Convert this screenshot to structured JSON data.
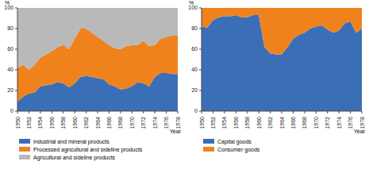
{
  "chart_data": [
    {
      "type": "area",
      "stacked": true,
      "legend": "bottom",
      "x_label": "Year",
      "y_label": "%",
      "x": [
        1950,
        1951,
        1952,
        1953,
        1954,
        1955,
        1956,
        1957,
        1958,
        1959,
        1960,
        1961,
        1962,
        1963,
        1964,
        1965,
        1966,
        1967,
        1968,
        1969,
        1970,
        1971,
        1972,
        1973,
        1974,
        1975,
        1976,
        1977,
        1978
      ],
      "xlim": [
        1950,
        1978
      ],
      "xticks": [
        1950,
        1952,
        1954,
        1956,
        1958,
        1960,
        1962,
        1964,
        1966,
        1968,
        1970,
        1972,
        1974,
        1976,
        1978
      ],
      "ylim": [
        0,
        100
      ],
      "yticks": [
        0,
        20,
        40,
        60,
        80,
        100
      ],
      "series": [
        {
          "name": "Industrial and mineral products",
          "color": "#3a6fb8",
          "values": [
            9,
            14,
            17,
            18,
            24,
            25,
            26,
            28,
            27,
            23,
            27,
            33,
            34,
            33,
            32,
            31,
            26,
            24,
            21,
            22,
            24,
            28,
            27,
            24,
            33,
            37,
            37,
            36,
            36
          ]
        },
        {
          "name": "Processed agricultural and sideline products",
          "color": "#f0821e",
          "values": [
            33,
            31,
            23,
            27,
            28,
            30,
            32,
            34,
            37,
            37,
            43,
            47,
            46,
            43,
            40,
            37,
            38,
            37,
            39,
            41,
            40,
            36,
            41,
            39,
            31,
            33,
            35,
            37,
            37
          ]
        },
        {
          "name": "Agricultural and sideline products",
          "color": "#b9b9b9",
          "values": [
            58,
            55,
            60,
            55,
            48,
            45,
            42,
            38,
            36,
            40,
            30,
            20,
            20,
            24,
            28,
            32,
            36,
            39,
            40,
            37,
            36,
            36,
            32,
            37,
            36,
            30,
            28,
            27,
            27
          ]
        }
      ]
    },
    {
      "type": "area",
      "stacked": true,
      "legend": "bottom",
      "x_label": "Year",
      "y_label": "%",
      "x": [
        1950,
        1951,
        1952,
        1953,
        1954,
        1955,
        1956,
        1957,
        1958,
        1959,
        1960,
        1961,
        1962,
        1963,
        1964,
        1965,
        1966,
        1967,
        1968,
        1969,
        1970,
        1971,
        1972,
        1973,
        1974,
        1975,
        1976,
        1977,
        1978
      ],
      "xlim": [
        1950,
        1978
      ],
      "xticks": [
        1950,
        1952,
        1954,
        1956,
        1958,
        1960,
        1962,
        1964,
        1966,
        1968,
        1970,
        1972,
        1974,
        1976,
        1978
      ],
      "ylim": [
        0,
        100
      ],
      "yticks": [
        0,
        20,
        40,
        60,
        80,
        100
      ],
      "series": [
        {
          "name": "Capital goods",
          "color": "#3a6fb8",
          "values": [
            82,
            81,
            88,
            91,
            92,
            92,
            93,
            91,
            91,
            93,
            93,
            62,
            56,
            55,
            55,
            62,
            70,
            74,
            76,
            80,
            82,
            83,
            79,
            76,
            78,
            85,
            87,
            76,
            80
          ]
        },
        {
          "name": "Consumer goods",
          "color": "#f0821e",
          "values": [
            18,
            19,
            12,
            9,
            8,
            8,
            7,
            9,
            9,
            7,
            7,
            38,
            44,
            45,
            45,
            38,
            30,
            26,
            24,
            20,
            18,
            17,
            21,
            24,
            22,
            15,
            13,
            24,
            20
          ]
        }
      ]
    }
  ]
}
